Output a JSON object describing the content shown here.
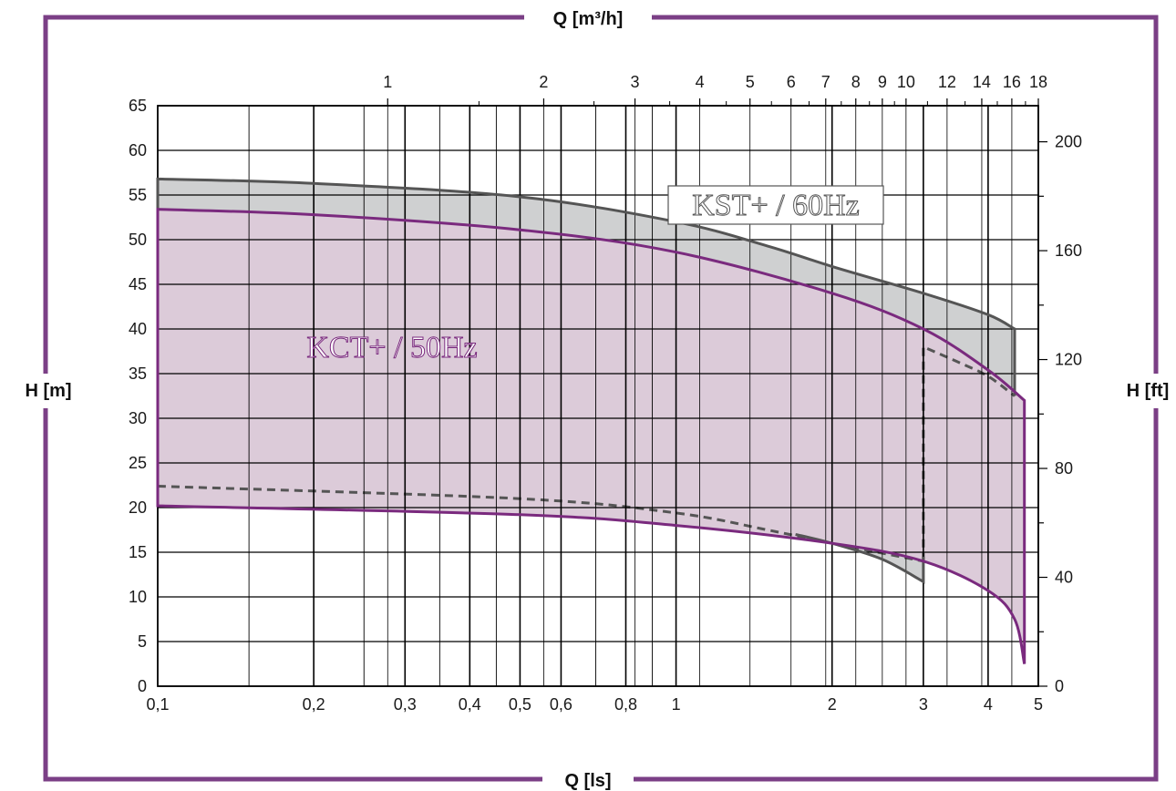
{
  "chart_data": {
    "type": "area",
    "title": "",
    "x_axis_bottom": {
      "label": "Q [ls]",
      "scale": "log",
      "range": [
        0.1,
        5
      ],
      "ticks": [
        0.1,
        0.2,
        0.3,
        0.4,
        0.5,
        0.6,
        0.8,
        1,
        2,
        3,
        4,
        5
      ],
      "tick_labels": [
        "0,1",
        "0,2",
        "0,3",
        "0,4",
        "0,5",
        "0,6",
        "0,8",
        "1",
        "2",
        "3",
        "4",
        "5"
      ]
    },
    "x_axis_top": {
      "label": "Q [m³/h]",
      "scale": "log",
      "ticks": [
        1,
        2,
        3,
        4,
        5,
        6,
        7,
        8,
        9,
        10,
        12,
        14,
        16,
        18
      ],
      "tick_labels": [
        "1",
        "2",
        "3",
        "4",
        "5",
        "6",
        "7",
        "8",
        "9",
        "10",
        "12",
        "14",
        "16",
        "18"
      ]
    },
    "y_axis_left": {
      "label": "H [m]",
      "range": [
        0,
        65
      ],
      "ticks": [
        0,
        5,
        10,
        15,
        20,
        25,
        30,
        35,
        40,
        45,
        50,
        55,
        60,
        65
      ],
      "tick_labels": [
        "0",
        "5",
        "10",
        "15",
        "20",
        "25",
        "30",
        "35",
        "40",
        "45",
        "50",
        "55",
        "60",
        "65"
      ]
    },
    "y_axis_right": {
      "label": "H [ft]",
      "ticks": [
        0,
        40,
        80,
        120,
        160,
        200
      ],
      "tick_labels": [
        "0",
        "40",
        "80",
        "120",
        "160",
        "200"
      ]
    },
    "grid": true,
    "regions": [
      {
        "name": "KST+ / 60Hz",
        "color": "#cfd0d1",
        "stroke": "#555555",
        "upper": [
          [
            0.1,
            56.8
          ],
          [
            0.2,
            56.3
          ],
          [
            0.5,
            54.8
          ],
          [
            1.0,
            52.0
          ],
          [
            1.5,
            49.3
          ],
          [
            2.0,
            47.0
          ],
          [
            3.0,
            44.0
          ],
          [
            4.0,
            41.6
          ],
          [
            4.5,
            40.0
          ]
        ],
        "right_edge_q": 4.5,
        "right_edge_bottom_h": 32.5,
        "lower": [
          [
            0.1,
            22.4
          ],
          [
            0.5,
            21.0
          ],
          [
            1.0,
            19.4
          ],
          [
            1.5,
            17.5
          ],
          [
            2.0,
            16.0
          ],
          [
            2.5,
            14.2
          ],
          [
            3.0,
            11.7
          ]
        ]
      },
      {
        "name": "KCT+ / 50Hz",
        "color": "#dccbd9",
        "stroke": "#7a2a7e",
        "upper": [
          [
            0.1,
            53.4
          ],
          [
            0.2,
            52.8
          ],
          [
            0.5,
            51.1
          ],
          [
            1.0,
            48.6
          ],
          [
            2.0,
            44.0
          ],
          [
            3.0,
            40.0
          ],
          [
            4.0,
            35.4
          ],
          [
            4.7,
            32.0
          ]
        ],
        "right_edge_q": 4.7,
        "right_edge_bottom_h": 2.5,
        "lower": [
          [
            0.1,
            20.2
          ],
          [
            0.5,
            19.2
          ],
          [
            1.0,
            18.0
          ],
          [
            2.0,
            16.0
          ],
          [
            3.0,
            14.0
          ],
          [
            4.0,
            10.7
          ],
          [
            4.5,
            7.5
          ],
          [
            4.7,
            2.5
          ]
        ]
      }
    ],
    "dashed_boundaries": [
      {
        "name": "KST+ lower dashed",
        "points": [
          [
            0.1,
            22.4
          ],
          [
            0.5,
            21.0
          ],
          [
            1.0,
            19.4
          ],
          [
            1.5,
            17.5
          ],
          [
            2.0,
            16.0
          ],
          [
            3.0,
            14.0
          ]
        ]
      },
      {
        "name": "KST+ right dashed",
        "points": [
          [
            3.0,
            14.0
          ],
          [
            3.0,
            38.0
          ],
          [
            3.5,
            36.3
          ],
          [
            4.0,
            34.7
          ],
          [
            4.5,
            32.5
          ]
        ]
      }
    ]
  },
  "labels": {
    "top_axis": "Q [m³/h]",
    "bottom_axis": "Q [ls]",
    "left_axis": "H [m]",
    "right_axis": "H [ft]",
    "kst": "KST+ / 60Hz",
    "kct": "KCT+ / 50Hz"
  },
  "colors": {
    "frame": "#7b3f86",
    "grid": "#000000",
    "kst_fill": "#cfd0d1",
    "kst_stroke": "#555555",
    "kct_fill": "#dccbd9",
    "kct_stroke": "#7a2a7e"
  }
}
